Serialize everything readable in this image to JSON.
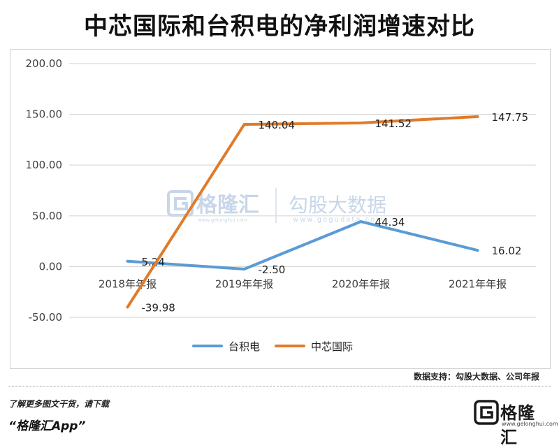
{
  "title": "中芯国际和台积电的净利润增速对比",
  "source_note": "数据支持：勾股大数据、公司年报",
  "footer": {
    "promo_line1": "了解更多图文干货，请下载",
    "promo_line2": "“格隆汇App”",
    "logo_name": "格隆汇",
    "logo_url": "www.gelonghui.com"
  },
  "watermark": {
    "brand": "格隆汇",
    "brand_url": "www.gelonghui.com",
    "text": "勾股大数据",
    "url": "www.gogudata.com"
  },
  "colors": {
    "tsmc": "#5b9bd5",
    "smic": "#e07b2a",
    "grid": "#d9d9d9",
    "axis_text": "#404040",
    "label_text": "#222222"
  },
  "chart_data": {
    "type": "line",
    "categories": [
      "2018年年报",
      "2019年年报",
      "2020年年报",
      "2021年年报"
    ],
    "ylim": [
      -50,
      200
    ],
    "yticks": [
      -50,
      0,
      50,
      100,
      150,
      200
    ],
    "ytick_labels": [
      "-50.00",
      "0.00",
      "50.00",
      "100.00",
      "150.00",
      "200.00"
    ],
    "series": [
      {
        "name": "台积电",
        "values": [
          5.24,
          -2.5,
          44.34,
          16.02
        ],
        "labels": [
          "5.24",
          "-2.50",
          "44.34",
          "16.02"
        ]
      },
      {
        "name": "中芯国际",
        "values": [
          -39.98,
          140.04,
          141.52,
          147.75
        ],
        "labels": [
          "-39.98",
          "140.04",
          "141.52",
          "147.75"
        ]
      }
    ],
    "legend_position": "bottom-center",
    "grid": true
  }
}
